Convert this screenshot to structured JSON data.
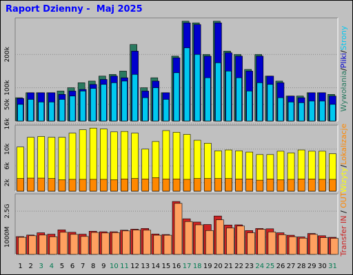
{
  "title": "Raport Dzienny -  Maj 2025",
  "colors": {
    "background": "#c0c0c0",
    "title": "#0000ff",
    "wyswietlenia": "#2a7a60",
    "pliki": "#0000cc",
    "strony": "#00c8f0",
    "wizyty": "#ffff00",
    "lokalizacje": "#ff8800",
    "transfer_in": "#cc2222",
    "transfer_out": "#ffa060",
    "weekend_day": "#007a50"
  },
  "chart_data": [
    {
      "type": "bar",
      "name": "hits",
      "x": [
        "1",
        "2",
        "3",
        "4",
        "5",
        "6",
        "7",
        "8",
        "9",
        "10",
        "11",
        "12",
        "13",
        "14",
        "15",
        "16",
        "17",
        "18",
        "19",
        "20",
        "21",
        "22",
        "23",
        "24",
        "25",
        "26",
        "27",
        "28",
        "29",
        "30",
        "31"
      ],
      "ylim": [
        0,
        310000
      ],
      "ticks": [
        {
          "value": 50000,
          "label": "50k"
        },
        {
          "value": 100000,
          "label": "100k"
        },
        {
          "value": 200000,
          "label": "200k"
        }
      ],
      "right_labels": [
        "Wywołania",
        "/",
        "Pliki",
        "/",
        "Strony"
      ],
      "series": [
        {
          "name": "Wywołania",
          "values": [
            70000,
            85000,
            85000,
            85000,
            90000,
            100000,
            115000,
            120000,
            135000,
            140000,
            150000,
            230000,
            100000,
            130000,
            85000,
            195000,
            300000,
            295000,
            200000,
            300000,
            210000,
            200000,
            155000,
            200000,
            135000,
            120000,
            75000,
            75000,
            85000,
            85000,
            80000
          ]
        },
        {
          "name": "Pliki",
          "values": [
            68000,
            85000,
            85000,
            85000,
            80000,
            90000,
            95000,
            110000,
            125000,
            135000,
            130000,
            210000,
            90000,
            120000,
            85000,
            190000,
            295000,
            290000,
            195000,
            295000,
            205000,
            195000,
            150000,
            195000,
            135000,
            115000,
            75000,
            70000,
            85000,
            85000,
            75000
          ]
        },
        {
          "name": "Strony",
          "values": [
            50000,
            65000,
            57000,
            57000,
            65000,
            75000,
            90000,
            98000,
            110000,
            115000,
            120000,
            140000,
            70000,
            100000,
            65000,
            145000,
            220000,
            200000,
            130000,
            175000,
            150000,
            130000,
            90000,
            115000,
            110000,
            70000,
            57000,
            55000,
            60000,
            60000,
            50000
          ]
        }
      ]
    },
    {
      "type": "bar",
      "name": "visits",
      "x": [
        "1",
        "2",
        "3",
        "4",
        "5",
        "6",
        "7",
        "8",
        "9",
        "10",
        "11",
        "12",
        "13",
        "14",
        "15",
        "16",
        "17",
        "18",
        "19",
        "20",
        "21",
        "22",
        "23",
        "24",
        "25",
        "26",
        "27",
        "28",
        "29",
        "30",
        "31"
      ],
      "ylim": [
        0,
        15700
      ],
      "ticks": [
        {
          "value": 2000,
          "label": "2k"
        },
        {
          "value": 6000,
          "label": "6k"
        },
        {
          "value": 10000,
          "label": "10k"
        },
        {
          "value": 16000,
          "label": "16k"
        }
      ],
      "right_labels": [
        "Wizyty",
        "/",
        "Lokalizacje"
      ],
      "series": [
        {
          "name": "Wizyty",
          "values": [
            10500,
            12800,
            13000,
            12800,
            12800,
            13800,
            14600,
            15000,
            14800,
            14100,
            14200,
            13800,
            10000,
            11800,
            14400,
            14000,
            13500,
            12100,
            11400,
            9600,
            9800,
            9600,
            9300,
            8700,
            8700,
            9500,
            9100,
            9800,
            9500,
            9500,
            8900
          ]
        },
        {
          "name": "Lokalizacje",
          "values": [
            3000,
            3100,
            3100,
            3000,
            2700,
            2800,
            2800,
            2800,
            2800,
            2700,
            2900,
            3000,
            2900,
            3200,
            2900,
            2900,
            2800,
            3000,
            3000,
            3000,
            3000,
            2900,
            2900,
            2600,
            2900,
            2700,
            2800,
            2900,
            2900,
            2800,
            2800
          ]
        }
      ]
    },
    {
      "type": "bar",
      "name": "transfer",
      "x": [
        "1",
        "2",
        "3",
        "4",
        "5",
        "6",
        "7",
        "8",
        "9",
        "10",
        "11",
        "12",
        "13",
        "14",
        "15",
        "16",
        "17",
        "18",
        "19",
        "20",
        "21",
        "22",
        "23",
        "24",
        "25",
        "26",
        "27",
        "28",
        "29",
        "30",
        "31"
      ],
      "ylim": [
        0,
        3500
      ],
      "ticks": [
        {
          "value": 1000,
          "label": "1000M"
        },
        {
          "value": 2500,
          "label": "2.5G"
        }
      ],
      "right_labels": [
        "Transfer",
        "IN",
        "/",
        "OUT"
      ],
      "series": [
        {
          "name": "IN",
          "values": [
            1030,
            1120,
            1250,
            1170,
            1420,
            1280,
            1170,
            1340,
            1310,
            1310,
            1400,
            1460,
            1500,
            1180,
            1150,
            3060,
            2060,
            1870,
            1730,
            2220,
            1700,
            1710,
            1380,
            1500,
            1480,
            1250,
            1110,
            1010,
            1210,
            1080,
            990
          ]
        },
        {
          "name": "OUT",
          "values": [
            990,
            1080,
            1120,
            1020,
            1280,
            1160,
            1040,
            1270,
            1240,
            1260,
            1360,
            1410,
            1400,
            1110,
            1110,
            2950,
            1900,
            1710,
            1380,
            2000,
            1530,
            1640,
            1250,
            1450,
            1300,
            1140,
            1020,
            940,
            1160,
            970,
            930
          ]
        }
      ]
    }
  ]
}
